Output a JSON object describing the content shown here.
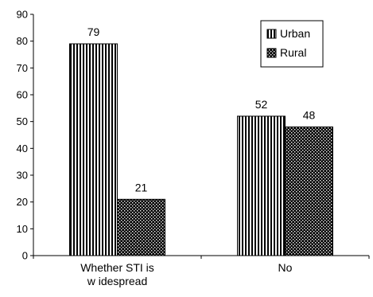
{
  "chart_data": {
    "type": "bar",
    "categories": [
      "Whether STI is widespread",
      "No"
    ],
    "category_lines": [
      [
        "Whether STI is",
        "w idespread"
      ],
      [
        "No"
      ]
    ],
    "series": [
      {
        "name": "Urban",
        "values": [
          79,
          52
        ],
        "pattern": "vertical-stripes"
      },
      {
        "name": "Rural",
        "values": [
          21,
          48
        ],
        "pattern": "dots"
      }
    ],
    "ylim": [
      0,
      90
    ],
    "yticks": [
      0,
      10,
      20,
      30,
      40,
      50,
      60,
      70,
      80,
      90
    ],
    "grid": false,
    "legend_position": "top-right",
    "title": "",
    "xlabel": "",
    "ylabel": ""
  }
}
